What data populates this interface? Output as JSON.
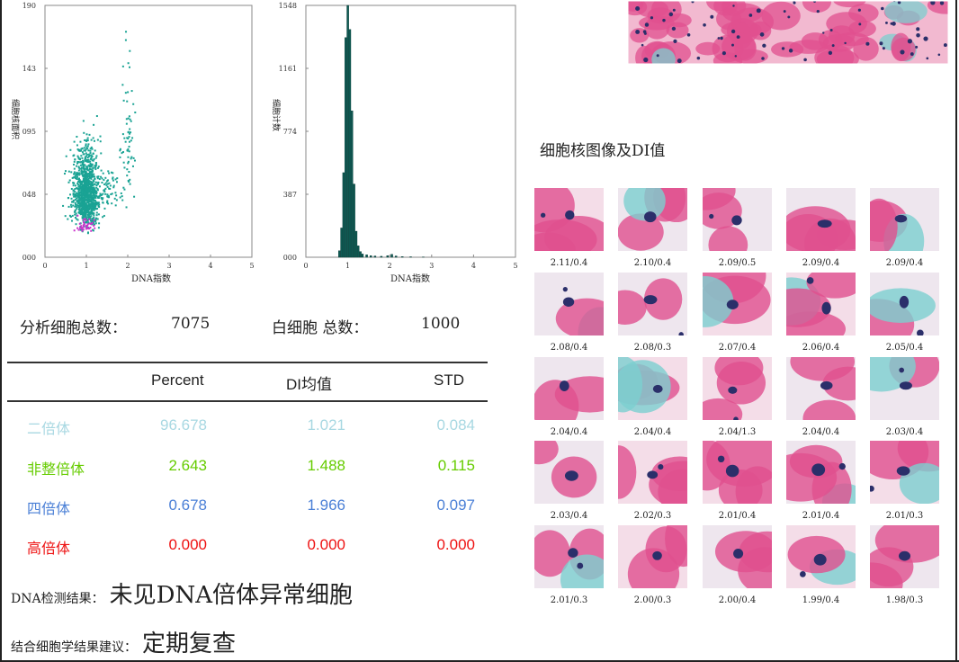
{
  "scatter_plot": {
    "ylabel": "细胞核面积",
    "xlabel": "DNA指数",
    "y_ticks": [
      "190",
      "143",
      "095",
      "048",
      "000"
    ],
    "x_ticks": [
      "0",
      "1",
      "2",
      "3",
      "4",
      "5"
    ]
  },
  "histogram": {
    "ylabel": "细胞计数",
    "xlabel": "DNA指数",
    "y_ticks": [
      "1548",
      "1161",
      "774",
      "387",
      "000"
    ],
    "x_ticks": [
      "0",
      "1",
      "2",
      "3",
      "4",
      "5"
    ]
  },
  "chart_data": [
    {
      "type": "scatter",
      "xlabel": "DNA指数",
      "ylabel": "细胞核面积",
      "xlim": [
        0,
        5
      ],
      "ylim": [
        0,
        190
      ],
      "clusters": [
        {
          "color": "#1aa394",
          "center": [
            1.0,
            40
          ],
          "spread": [
            0.15,
            20
          ],
          "count": 1100
        },
        {
          "color": "#1aa394",
          "center": [
            1.5,
            45
          ],
          "spread": [
            0.25,
            10
          ],
          "count": 70
        },
        {
          "color": "#1aa394",
          "center": [
            2.0,
            80
          ],
          "spread": [
            0.08,
            30
          ],
          "count": 60
        },
        {
          "color": "#cc33cc",
          "center": [
            0.95,
            22
          ],
          "spread": [
            0.12,
            3
          ],
          "count": 40
        }
      ]
    },
    {
      "type": "bar",
      "xlabel": "DNA指数",
      "ylabel": "细胞计数",
      "xlim": [
        0,
        5
      ],
      "ylim": [
        0,
        1548
      ],
      "bar_color": "#0e5a53",
      "bins": [
        {
          "x": 0.8,
          "y": 40
        },
        {
          "x": 0.85,
          "y": 180
        },
        {
          "x": 0.9,
          "y": 520
        },
        {
          "x": 0.95,
          "y": 1350
        },
        {
          "x": 1.0,
          "y": 1548
        },
        {
          "x": 1.05,
          "y": 1400
        },
        {
          "x": 1.1,
          "y": 900
        },
        {
          "x": 1.15,
          "y": 450
        },
        {
          "x": 1.2,
          "y": 160
        },
        {
          "x": 1.25,
          "y": 70
        },
        {
          "x": 1.3,
          "y": 35
        },
        {
          "x": 1.35,
          "y": 20
        },
        {
          "x": 1.45,
          "y": 15
        },
        {
          "x": 1.55,
          "y": 10
        },
        {
          "x": 1.65,
          "y": 8
        },
        {
          "x": 1.8,
          "y": 6
        },
        {
          "x": 1.95,
          "y": 10
        },
        {
          "x": 2.05,
          "y": 18
        },
        {
          "x": 2.15,
          "y": 8
        },
        {
          "x": 2.3,
          "y": 4
        },
        {
          "x": 2.5,
          "y": 3
        },
        {
          "x": 2.8,
          "y": 2
        }
      ]
    }
  ],
  "stats": {
    "total_label": "分析细胞总数：",
    "total_value": "7075",
    "wbc_label": "白细胞 总数：",
    "wbc_value": "1000"
  },
  "table": {
    "headers": [
      "Percent",
      "DI均值",
      "STD"
    ],
    "rows": [
      {
        "label": "二倍体",
        "percent": "96.678",
        "di": "1.021",
        "std": "0.084",
        "color": "#a8d8e2"
      },
      {
        "label": "非整倍体",
        "percent": "2.643",
        "di": "1.488",
        "std": "0.115",
        "color": "#66cc00"
      },
      {
        "label": "四倍体",
        "percent": "0.678",
        "di": "1.966",
        "std": "0.097",
        "color": "#4a7fd6"
      },
      {
        "label": "高倍体",
        "percent": "0.000",
        "di": "0.000",
        "std": "0.000",
        "color": "#ee1111"
      }
    ]
  },
  "result": {
    "label": "DNA检测结果：",
    "value": "未见DNA倍体异常细胞"
  },
  "suggestion": {
    "label": "结合细胞学结果建议：",
    "value": "定期复查"
  },
  "cells": {
    "title": "细胞核图像及DI值",
    "captions": [
      "2.11/0.4",
      "2.10/0.4",
      "2.09/0.5",
      "2.09/0.4",
      "2.09/0.4",
      "2.08/0.4",
      "2.08/0.3",
      "2.07/0.4",
      "2.06/0.4",
      "2.05/0.4",
      "2.04/0.4",
      "2.04/0.4",
      "2.04/1.3",
      "2.04/0.4",
      "2.03/0.4",
      "2.03/0.4",
      "2.02/0.3",
      "2.01/0.4",
      "2.01/0.4",
      "2.01/0.3",
      "2.01/0.3",
      "2.00/0.3",
      "2.00/0.4",
      "1.99/0.4",
      "1.98/0.3"
    ]
  },
  "colors": {
    "stain_pink": "#e0508f",
    "stain_light": "#f2b9d0",
    "stain_cyan": "#7ccfcf",
    "nucleus": "#2b2f6a"
  }
}
